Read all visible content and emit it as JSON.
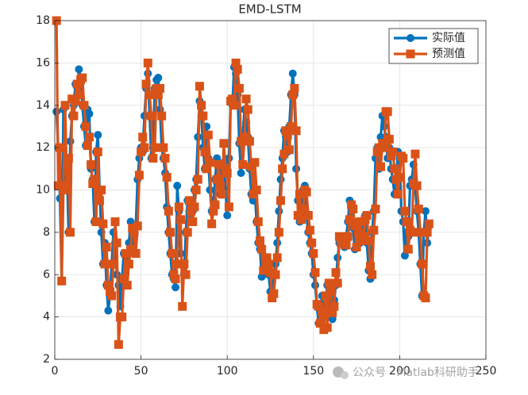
{
  "chart_data": {
    "type": "line",
    "title": "EMD-LSTM",
    "x": [
      1,
      2,
      3,
      4,
      5,
      6,
      7,
      8,
      9,
      10,
      11,
      12,
      13,
      14,
      15,
      16,
      17,
      18,
      19,
      20,
      21,
      22,
      23,
      24,
      25,
      26,
      27,
      28,
      29,
      30,
      31,
      32,
      33,
      34,
      35,
      36,
      37,
      38,
      39,
      40,
      41,
      42,
      43,
      44,
      45,
      46,
      47,
      48,
      49,
      50,
      51,
      52,
      53,
      54,
      55,
      56,
      57,
      58,
      59,
      60,
      61,
      62,
      63,
      64,
      65,
      66,
      67,
      68,
      69,
      70,
      71,
      72,
      73,
      74,
      75,
      76,
      77,
      78,
      79,
      80,
      81,
      82,
      83,
      84,
      85,
      86,
      87,
      88,
      89,
      90,
      91,
      92,
      93,
      94,
      95,
      96,
      97,
      98,
      99,
      100,
      101,
      102,
      103,
      104,
      105,
      106,
      107,
      108,
      109,
      110,
      111,
      112,
      113,
      114,
      115,
      116,
      117,
      118,
      119,
      120,
      121,
      122,
      123,
      124,
      125,
      126,
      127,
      128,
      129,
      130,
      131,
      132,
      133,
      134,
      135,
      136,
      137,
      138,
      139,
      140,
      141,
      142,
      143,
      144,
      145,
      146,
      147,
      148,
      149,
      150,
      151,
      152,
      153,
      154,
      155,
      156,
      157,
      158,
      159,
      160,
      161,
      162,
      163,
      164,
      165,
      166,
      167,
      168,
      169,
      170,
      171,
      172,
      173,
      174,
      175,
      176,
      177,
      178,
      179,
      180,
      181,
      182,
      183,
      184,
      185,
      186,
      187,
      188,
      189,
      190,
      191,
      192,
      193,
      194,
      195,
      196,
      197,
      198,
      199,
      200,
      201,
      202,
      203,
      204,
      205,
      206,
      207,
      208,
      209,
      210,
      211,
      212,
      213,
      214,
      215,
      216,
      217
    ],
    "series": [
      {
        "name": "实际值",
        "color": "#0072bd",
        "marker": "circle",
        "values": [
          13.7,
          12,
          9.6,
          5.7,
          13.8,
          10.5,
          11.2,
          8,
          12.3,
          13.5,
          14,
          15,
          14.5,
          15.7,
          15.3,
          14,
          13,
          12.1,
          13.8,
          13.6,
          11,
          10.5,
          8.5,
          11.8,
          12.6,
          10,
          8,
          6.5,
          7.5,
          5.5,
          4.3,
          5,
          6.5,
          8,
          7.5,
          6,
          5.5,
          4.5,
          5.8,
          7,
          5.5,
          6.5,
          7.5,
          8.5,
          8,
          7,
          8.3,
          10.5,
          11.5,
          12,
          11.8,
          13.5,
          14.8,
          15.5,
          13.5,
          11.5,
          12,
          14.8,
          15.2,
          15.3,
          13.8,
          12,
          11.5,
          10.8,
          9.2,
          8,
          7,
          6,
          5.8,
          5.4,
          10.2,
          9,
          7,
          6.5,
          6,
          8,
          9.5,
          9,
          8.5,
          9,
          10,
          10.5,
          12.5,
          14.2,
          13.5,
          12,
          11,
          13,
          11.5,
          10,
          9,
          9.5,
          10.5,
          11.5,
          10.5,
          9.8,
          11,
          11.3,
          10,
          8.8,
          11.5,
          14.2,
          14,
          15.8,
          15.5,
          14.5,
          12.2,
          10.8,
          12.5,
          13.8,
          13.2,
          12.5,
          11,
          9.8,
          9.5,
          10,
          8.5,
          7.5,
          7.2,
          5.9,
          6.8,
          6.8,
          6.5,
          6,
          5.2,
          5,
          6,
          6.5,
          7.5,
          9,
          10.5,
          11.5,
          12.8,
          12.5,
          11.8,
          13,
          14.5,
          15.5,
          14.5,
          11,
          9.5,
          8.5,
          9,
          10,
          10.2,
          8.8,
          8,
          7.5,
          7,
          6,
          5.5,
          4.5,
          3.7,
          4.2,
          5,
          4,
          4.5,
          5.5,
          5,
          4.2,
          3.9,
          4.8,
          5.5,
          6.8,
          7.5,
          7.8,
          7.5,
          7.3,
          7.8,
          8.5,
          9.5,
          9,
          8.2,
          7.2,
          8,
          8.5,
          7.5,
          7.8,
          8.5,
          8.8,
          7.5,
          6.2,
          5.8,
          8,
          9,
          11.5,
          12,
          11,
          12.5,
          13.5,
          13,
          12.5,
          11.5,
          12,
          11,
          10.5,
          9.8,
          10.5,
          11.8,
          11.5,
          9,
          8.5,
          6.9,
          8,
          7.8,
          10.2,
          10.5,
          11.2,
          10.2,
          9,
          8,
          6.5,
          5,
          8,
          9,
          7.5,
          8.3
        ]
      },
      {
        "name": "预测值",
        "color": "#d95319",
        "marker": "square",
        "values": [
          18,
          10.2,
          12,
          5.7,
          10,
          14,
          10.2,
          11.5,
          8,
          14.3,
          13.5,
          14.2,
          15,
          14.5,
          15.2,
          15.3,
          14,
          13,
          12.1,
          12.5,
          11.2,
          10.3,
          10.5,
          8.5,
          11.8,
          9.5,
          10,
          8.4,
          6.5,
          7.3,
          5.5,
          5.2,
          5,
          6.5,
          8.5,
          7.5,
          2.7,
          4,
          4,
          5.8,
          7,
          5.5,
          6.5,
          7.2,
          8.2,
          8,
          7,
          8.3,
          10.7,
          11.8,
          12.5,
          12,
          15,
          16,
          14.5,
          13.5,
          11.5,
          12,
          14.8,
          14.5,
          14.8,
          13.5,
          12,
          11.5,
          10.6,
          9,
          8,
          7,
          6,
          5.8,
          6.5,
          9.2,
          8.6,
          4.5,
          6.5,
          6,
          8,
          9.5,
          9,
          8.5,
          9.2,
          10,
          10.5,
          14.9,
          14,
          13.5,
          11.8,
          11,
          12.6,
          11.3,
          8.4,
          9,
          9.3,
          10.5,
          11.2,
          10.2,
          9.8,
          12.2,
          11,
          10.8,
          9.2,
          14.2,
          14.3,
          14,
          16,
          15.7,
          14.8,
          12.3,
          11.2,
          12.5,
          14.3,
          13.8,
          12.3,
          11.1,
          9.8,
          11.3,
          10,
          8.5,
          7.6,
          7.2,
          6.2,
          6.8,
          6.8,
          6.5,
          6.1,
          4.9,
          5.1,
          6,
          6.8,
          8,
          9.5,
          11,
          11.7,
          12.8,
          12.6,
          11.9,
          13,
          14.5,
          14.8,
          12.8,
          8.8,
          9.8,
          8.6,
          9.1,
          10,
          9.9,
          8.8,
          8.1,
          7.5,
          7,
          6.1,
          4.6,
          4.5,
          3.7,
          4.3,
          3.4,
          5,
          3.5,
          5.6,
          5.2,
          4.2,
          4.5,
          6.1,
          5.6,
          7.8,
          7.5,
          7.8,
          7.6,
          7.4,
          7.8,
          8.6,
          9.3,
          9.1,
          8.3,
          7.3,
          8,
          8.5,
          7.6,
          7.8,
          8.6,
          8.8,
          7.6,
          6.4,
          6,
          8.1,
          9.1,
          11.8,
          12,
          11.1,
          12.2,
          12,
          13.7,
          13.7,
          12.4,
          11.6,
          11.8,
          11,
          10.5,
          9.8,
          10.6,
          11.6,
          11.5,
          9,
          8.5,
          7.2,
          8.1,
          8,
          10.3,
          11.7,
          10.2,
          9.1,
          8,
          6.5,
          5,
          4.9,
          8,
          8.4
        ]
      }
    ],
    "xlim": [
      0,
      250
    ],
    "xticks": [
      0,
      50,
      100,
      150,
      200,
      250
    ],
    "ylim": [
      2,
      18
    ],
    "yticks": [
      2,
      4,
      6,
      8,
      10,
      12,
      14,
      16,
      18
    ],
    "grid": true,
    "legend": "northeast"
  },
  "watermark": "公众号 · Matlab科研助手"
}
